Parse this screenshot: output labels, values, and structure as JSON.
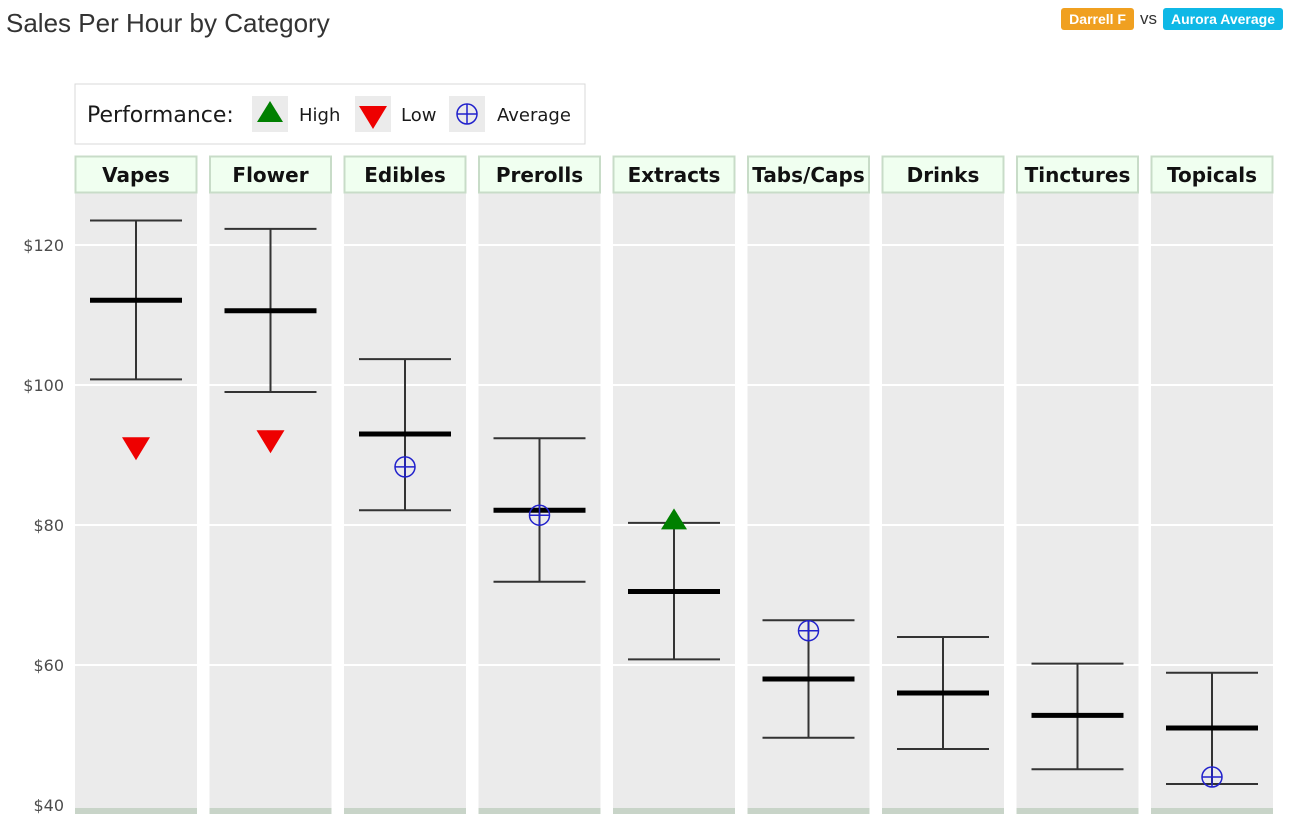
{
  "header": {
    "title": "Sales Per Hour by Category",
    "person_badge": "Darrell F",
    "vs_text": "vs",
    "average_badge": "Aurora Average"
  },
  "colors": {
    "person_badge": "#f0a020",
    "average_badge": "#0fb8e6",
    "panel_bg": "#ebebeb",
    "strip_bg": "#f0fff0",
    "strip_border": "#c8dcc8",
    "high": "#008000",
    "low": "#ee0000",
    "average": "#2222cc"
  },
  "legend": {
    "title": "Performance:",
    "items": [
      {
        "label": "High",
        "icon": "triangle-up-icon"
      },
      {
        "label": "Low",
        "icon": "triangle-down-icon"
      },
      {
        "label": "Average",
        "icon": "circle-plus-icon"
      }
    ]
  },
  "chart_data": {
    "type": "errorbar",
    "title": "",
    "xlabel": "",
    "ylabel": "",
    "ylim": [
      40,
      128
    ],
    "y_ticks": [
      40,
      60,
      80,
      100,
      120
    ],
    "y_tick_labels": [
      "$40",
      "$60",
      "$80",
      "$100",
      "$120"
    ],
    "grid": true,
    "legend_position": "top-left",
    "categories": [
      "Vapes",
      "Flower",
      "Edibles",
      "Prerolls",
      "Extracts",
      "Tabs/Caps",
      "Drinks",
      "Tinctures",
      "Topicals"
    ],
    "series": [
      {
        "name": "mean",
        "values": [
          112.1,
          110.6,
          93.0,
          82.1,
          70.5,
          58.0,
          56.0,
          52.8,
          51.0
        ]
      },
      {
        "name": "lower",
        "values": [
          100.8,
          99.0,
          82.1,
          71.9,
          60.8,
          49.6,
          48.0,
          45.1,
          43.0
        ]
      },
      {
        "name": "upper",
        "values": [
          123.5,
          122.3,
          103.7,
          92.4,
          80.3,
          66.4,
          64.0,
          60.2,
          58.9
        ]
      }
    ],
    "markers": [
      {
        "category": "Vapes",
        "type": "Low",
        "value": 91.1
      },
      {
        "category": "Flower",
        "type": "Low",
        "value": 92.1
      },
      {
        "category": "Edibles",
        "type": "Average",
        "value": 88.3
      },
      {
        "category": "Prerolls",
        "type": "Average",
        "value": 81.4
      },
      {
        "category": "Extracts",
        "type": "High",
        "value": 80.8
      },
      {
        "category": "Tabs/Caps",
        "type": "Average",
        "value": 64.9
      },
      {
        "category": "Topicals",
        "type": "Average",
        "value": 44.0
      }
    ]
  }
}
